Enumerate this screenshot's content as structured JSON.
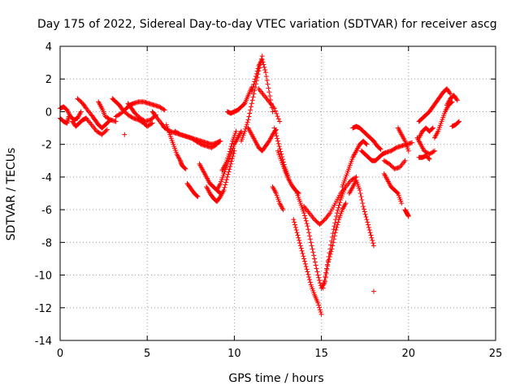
{
  "chart_data": {
    "type": "scatter",
    "title": "Day 175 of 2022, Sidereal Day-to-day VTEC variation (SDTVAR) for receiver ascg",
    "xlabel": "GPS time / hours",
    "ylabel": "SDTVAR / TECUs",
    "xlim": [
      0,
      25
    ],
    "ylim": [
      -14,
      4
    ],
    "xticks": [
      0,
      5,
      10,
      15,
      20,
      25
    ],
    "yticks": [
      -14,
      -12,
      -10,
      -8,
      -6,
      -4,
      -2,
      0,
      2,
      4
    ],
    "grid": true,
    "marker": "+",
    "colors": {
      "series": "#ff0000",
      "grid": "#a0a0a0",
      "axis": "#000000"
    },
    "tracks": [
      {
        "name": "track-a",
        "x": [
          0.0,
          0.2,
          0.4,
          0.6,
          0.8,
          1.0,
          1.2
        ],
        "y": [
          0.2,
          0.3,
          0.1,
          -0.3,
          -0.5,
          -0.4,
          0.0
        ]
      },
      {
        "name": "track-b",
        "x": [
          0.0,
          0.2,
          0.4,
          0.5
        ],
        "y": [
          -0.4,
          -0.6,
          -0.7,
          -0.3
        ]
      },
      {
        "name": "track-c",
        "x": [
          0.7,
          0.9,
          1.1,
          1.3,
          1.5
        ],
        "y": [
          -0.6,
          -0.9,
          -0.7,
          -0.5,
          -0.4
        ]
      },
      {
        "name": "track-d",
        "x": [
          1.0,
          1.3,
          1.5,
          1.8,
          2.0,
          2.2,
          2.4,
          2.6,
          2.8
        ],
        "y": [
          0.8,
          0.5,
          0.2,
          -0.2,
          -0.5,
          -0.8,
          -1.0,
          -0.8,
          -0.6
        ]
      },
      {
        "name": "track-e",
        "x": [
          1.5,
          1.8,
          2.1,
          2.4,
          2.7
        ],
        "y": [
          -0.4,
          -0.8,
          -1.2,
          -1.4,
          -1.1
        ]
      },
      {
        "name": "track-f",
        "x": [
          2.2,
          2.4,
          2.6,
          2.9,
          3.2
        ],
        "y": [
          0.6,
          0.2,
          -0.3,
          -0.5,
          -0.6
        ]
      },
      {
        "name": "track-g",
        "x": [
          3.0,
          3.2,
          3.4,
          3.6,
          3.9,
          4.2,
          4.5,
          4.8,
          5.0,
          5.3
        ],
        "y": [
          0.8,
          0.6,
          0.4,
          0.1,
          -0.2,
          -0.4,
          -0.5,
          -0.7,
          -0.9,
          -0.7
        ]
      },
      {
        "name": "track-h",
        "x": [
          3.2,
          3.5,
          3.8,
          4.0,
          4.2,
          4.5,
          4.8,
          5.1,
          5.4,
          5.7,
          6.0
        ],
        "y": [
          -0.3,
          -0.1,
          0.2,
          0.4,
          0.5,
          0.6,
          0.6,
          0.5,
          0.4,
          0.3,
          0.1
        ]
      },
      {
        "name": "track-i",
        "x": [
          3.9,
          4.1,
          4.3,
          4.6,
          4.9,
          5.2,
          5.5
        ],
        "y": [
          0.5,
          0.2,
          -0.1,
          -0.4,
          -0.6,
          -0.5,
          -0.2
        ]
      },
      {
        "name": "track-j",
        "x": [
          5.3,
          5.5,
          5.8,
          6.0
        ],
        "y": [
          0.0,
          -0.3,
          -0.7,
          -1.0
        ]
      },
      {
        "name": "track-k",
        "x": [
          6.1,
          6.3,
          6.5,
          6.7,
          6.9,
          7.0,
          7.2
        ],
        "y": [
          -0.8,
          -1.4,
          -2.0,
          -2.6,
          -3.0,
          -3.3,
          -3.5
        ]
      },
      {
        "name": "track-l",
        "x": [
          6.0,
          6.3,
          6.6,
          6.9,
          7.2,
          7.5,
          7.8,
          8.1,
          8.4,
          8.7,
          9.0,
          9.2
        ],
        "y": [
          -1.0,
          -1.2,
          -1.3,
          -1.4,
          -1.5,
          -1.6,
          -1.7,
          -1.8,
          -1.9,
          -2.0,
          -1.9,
          -1.8
        ]
      },
      {
        "name": "track-m",
        "x": [
          6.6,
          6.9,
          7.2,
          7.5,
          7.8,
          8.1,
          8.4,
          8.7,
          9.0
        ],
        "y": [
          -1.2,
          -1.4,
          -1.5,
          -1.6,
          -1.8,
          -2.0,
          -2.1,
          -2.2,
          -2.0
        ]
      },
      {
        "name": "track-n",
        "x": [
          7.3,
          7.5,
          7.7,
          7.9
        ],
        "y": [
          -4.4,
          -4.7,
          -5.0,
          -5.2
        ]
      },
      {
        "name": "track-o",
        "x": [
          8.0,
          8.2,
          8.4,
          8.6,
          8.8,
          9.0,
          9.2
        ],
        "y": [
          -3.2,
          -3.6,
          -4.0,
          -4.4,
          -4.6,
          -4.8,
          -5.0
        ]
      },
      {
        "name": "track-p",
        "x": [
          8.4,
          8.6,
          8.8,
          9.0,
          9.2,
          9.4,
          9.6,
          9.8,
          10.0
        ],
        "y": [
          -4.6,
          -5.0,
          -5.3,
          -5.5,
          -5.2,
          -4.8,
          -4.0,
          -3.2,
          -2.4
        ]
      },
      {
        "name": "track-q",
        "x": [
          9.0,
          9.2,
          9.4,
          9.6,
          9.8,
          10.0,
          10.2,
          10.4
        ],
        "y": [
          -4.8,
          -4.4,
          -3.8,
          -3.2,
          -2.6,
          -2.0,
          -1.6,
          -1.2
        ]
      },
      {
        "name": "track-r",
        "x": [
          9.3,
          9.5,
          9.7,
          9.9,
          10.1
        ],
        "y": [
          -3.6,
          -3.2,
          -2.6,
          -1.8,
          -1.2
        ]
      },
      {
        "name": "track-s",
        "x": [
          9.6,
          9.8,
          10.0,
          10.2,
          10.4,
          10.6,
          10.8,
          11.0
        ],
        "y": [
          0.0,
          -0.1,
          0.0,
          0.1,
          0.3,
          0.5,
          1.0,
          1.5
        ]
      },
      {
        "name": "track-t",
        "x": [
          10.4,
          10.6,
          10.8,
          11.0,
          11.2,
          11.4,
          11.6
        ],
        "y": [
          -1.8,
          -1.2,
          -0.5,
          0.5,
          1.5,
          2.5,
          3.4
        ]
      },
      {
        "name": "track-u",
        "x": [
          11.0,
          11.2,
          11.4,
          11.6,
          11.8,
          12.0,
          12.2
        ],
        "y": [
          1.2,
          2.0,
          2.8,
          3.2,
          2.4,
          1.2,
          0.0
        ]
      },
      {
        "name": "track-v",
        "x": [
          10.8,
          11.0,
          11.2,
          11.4,
          11.6,
          11.8,
          12.0,
          12.2,
          12.4
        ],
        "y": [
          -1.0,
          -1.4,
          -1.8,
          -2.2,
          -2.4,
          -2.1,
          -1.8,
          -1.4,
          -1.1
        ]
      },
      {
        "name": "track-w",
        "x": [
          11.4,
          11.7,
          12.0,
          12.3,
          12.6
        ],
        "y": [
          1.4,
          1.0,
          0.6,
          0.2,
          -0.6
        ]
      },
      {
        "name": "track-x",
        "x": [
          12.3,
          12.5,
          12.7,
          12.9,
          13.1
        ],
        "y": [
          -1.0,
          -1.8,
          -2.6,
          -3.4,
          -4.0
        ]
      },
      {
        "name": "track-y",
        "x": [
          12.5,
          12.7,
          12.9,
          13.1,
          13.3,
          13.5,
          13.7
        ],
        "y": [
          -2.4,
          -3.0,
          -3.6,
          -4.1,
          -4.5,
          -4.8,
          -5.0
        ]
      },
      {
        "name": "track-z",
        "x": [
          12.2,
          12.4,
          12.6,
          12.8
        ],
        "y": [
          -4.6,
          -5.0,
          -5.6,
          -6.0
        ]
      },
      {
        "name": "track-aa",
        "x": [
          13.6,
          13.8,
          14.0,
          14.2,
          14.4,
          14.6,
          14.8,
          15.0,
          15.2,
          15.4,
          15.6,
          15.8,
          16.0,
          16.2,
          16.4
        ],
        "y": [
          -5.0,
          -5.6,
          -6.2,
          -7.0,
          -8.0,
          -9.0,
          -10.0,
          -10.8,
          -10.4,
          -9.2,
          -8.4,
          -7.4,
          -6.6,
          -6.0,
          -5.6
        ]
      },
      {
        "name": "track-ab",
        "x": [
          13.4,
          13.6,
          13.8,
          14.0,
          14.2,
          14.4,
          14.6,
          14.8,
          15.0
        ],
        "y": [
          -6.6,
          -7.4,
          -8.2,
          -9.0,
          -9.8,
          -10.6,
          -11.2,
          -11.7,
          -12.4
        ]
      },
      {
        "name": "track-ac",
        "x": [
          14.0,
          14.3,
          14.6,
          14.9,
          15.2,
          15.5,
          15.8,
          16.1,
          16.4,
          16.7,
          17.0
        ],
        "y": [
          -5.8,
          -6.2,
          -6.6,
          -6.9,
          -6.6,
          -6.2,
          -5.6,
          -5.0,
          -4.6,
          -4.2,
          -4.0
        ]
      },
      {
        "name": "track-ad",
        "x": [
          15.1,
          15.3,
          15.5,
          15.7,
          15.9,
          16.1,
          16.3
        ],
        "y": [
          -10.8,
          -9.6,
          -8.4,
          -7.2,
          -6.2,
          -5.4,
          -4.8
        ]
      },
      {
        "name": "track-ae",
        "x": [
          16.2,
          16.4,
          16.6,
          16.8,
          17.0,
          17.2,
          17.4,
          17.6
        ],
        "y": [
          -4.6,
          -4.0,
          -3.4,
          -2.8,
          -2.4,
          -2.0,
          -1.8,
          -2.0
        ]
      },
      {
        "name": "track-af",
        "x": [
          16.6,
          16.8,
          17.0,
          17.2,
          17.4,
          17.6,
          17.8,
          18.0
        ],
        "y": [
          -5.0,
          -4.6,
          -4.2,
          -4.8,
          -5.8,
          -6.6,
          -7.4,
          -8.2
        ]
      },
      {
        "name": "track-ag",
        "x": [
          16.8,
          17.0,
          17.2,
          17.4,
          17.6,
          17.8,
          18.0,
          18.2,
          18.4
        ],
        "y": [
          -1.0,
          -0.9,
          -1.0,
          -1.2,
          -1.4,
          -1.6,
          -1.8,
          -2.1,
          -2.3
        ]
      },
      {
        "name": "track-ah",
        "x": [
          17.3,
          17.5,
          17.7,
          17.9,
          18.1,
          18.3,
          18.5,
          18.7,
          19.0,
          19.3,
          19.6,
          19.9,
          20.2
        ],
        "y": [
          -2.4,
          -2.6,
          -2.8,
          -3.0,
          -3.0,
          -2.8,
          -2.6,
          -2.5,
          -2.4,
          -2.2,
          -2.1,
          -2.0,
          -1.9
        ]
      },
      {
        "name": "track-ai",
        "x": [
          18.6,
          18.8,
          19.0,
          19.2,
          19.4,
          19.6
        ],
        "y": [
          -3.8,
          -4.2,
          -4.6,
          -4.8,
          -5.0,
          -5.6
        ]
      },
      {
        "name": "track-aj",
        "x": [
          18.6,
          18.9,
          19.2,
          19.5,
          19.8
        ],
        "y": [
          -3.0,
          -3.2,
          -3.5,
          -3.4,
          -3.0
        ]
      },
      {
        "name": "track-ak",
        "x": [
          19.4,
          19.6,
          19.8,
          20.0
        ],
        "y": [
          -1.0,
          -1.4,
          -1.8,
          -2.4
        ]
      },
      {
        "name": "track-al",
        "x": [
          19.8,
          19.9,
          20.0
        ],
        "y": [
          -6.0,
          -6.2,
          -6.4
        ]
      },
      {
        "name": "track-am",
        "x": [
          20.6,
          20.8,
          21.0,
          21.2,
          21.4,
          21.6,
          21.8,
          22.0,
          22.2,
          22.4
        ],
        "y": [
          -0.6,
          -0.4,
          -0.2,
          0.0,
          0.3,
          0.6,
          0.9,
          1.2,
          1.4,
          1.1
        ]
      },
      {
        "name": "track-an",
        "x": [
          20.6,
          20.8,
          21.0,
          21.2,
          21.4
        ],
        "y": [
          -1.6,
          -1.2,
          -1.0,
          -1.2,
          -1.0
        ]
      },
      {
        "name": "track-ao",
        "x": [
          20.5,
          20.7,
          20.9,
          21.2,
          21.5
        ],
        "y": [
          -1.6,
          -2.0,
          -2.4,
          -2.6,
          -2.4
        ]
      },
      {
        "name": "track-ap",
        "x": [
          20.6,
          20.8,
          21.0,
          21.2
        ],
        "y": [
          -2.8,
          -2.8,
          -2.7,
          -2.9
        ]
      },
      {
        "name": "track-aq",
        "x": [
          21.5,
          21.7,
          21.9,
          22.1,
          22.3,
          22.5
        ],
        "y": [
          -1.6,
          -1.2,
          -0.6,
          0.0,
          0.4,
          0.6
        ]
      },
      {
        "name": "track-ar",
        "x": [
          22.2,
          22.4,
          22.6,
          22.8
        ],
        "y": [
          0.4,
          0.8,
          1.0,
          0.7
        ]
      },
      {
        "name": "track-as",
        "x": [
          22.5,
          22.7,
          22.9
        ],
        "y": [
          -0.9,
          -0.8,
          -0.6
        ]
      },
      {
        "name": "track-at",
        "x": [
          18.0
        ],
        "y": [
          -11.0
        ]
      },
      {
        "name": "track-au",
        "x": [
          3.7
        ],
        "y": [
          -1.4
        ]
      }
    ]
  }
}
